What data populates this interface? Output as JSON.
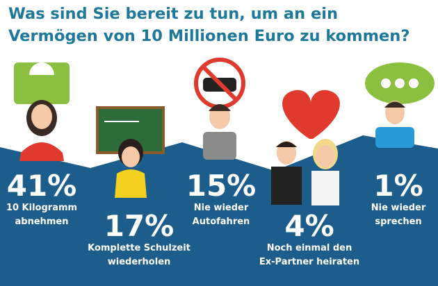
{
  "chart_data": {
    "type": "infographic",
    "title": "Was sind Sie bereit zu tun, um an ein Vermögen von 10 Millionen Euro zu kommen?",
    "categories": [
      "10 Kilogramm abnehmen",
      "Komplette Schulzeit wiederholen",
      "Nie wieder Autofahren",
      "Noch einmal den Ex-Partner heiraten",
      "Nie wieder sprechen"
    ],
    "values": [
      41,
      17,
      15,
      4,
      1
    ],
    "value_labels": [
      "41%",
      "17%",
      "15%",
      "4%",
      "1%"
    ],
    "color": "#1c5d8c"
  }
}
